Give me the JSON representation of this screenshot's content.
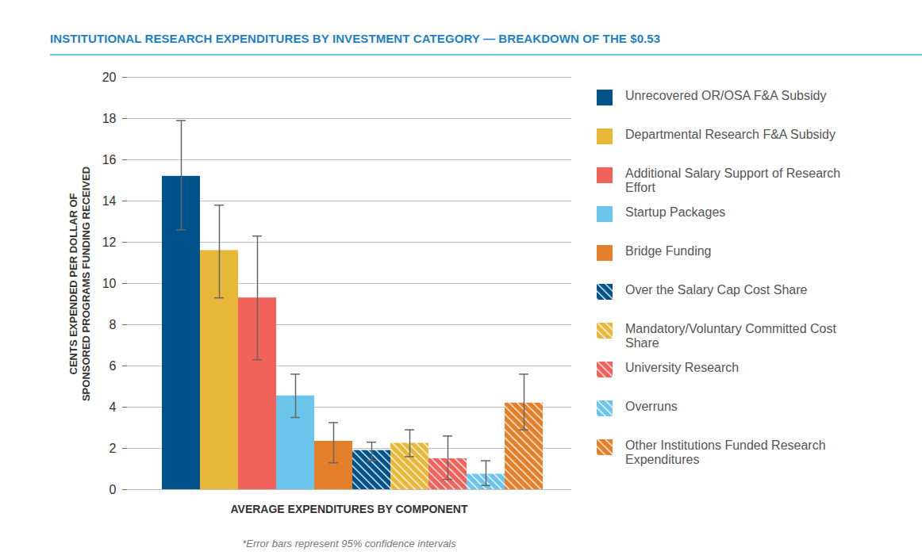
{
  "chart_data": {
    "type": "bar",
    "title": "INSTITUTIONAL RESEARCH EXPENDITURES BY INVESTMENT CATEGORY — BREAKDOWN OF THE $0.53",
    "xlabel": "AVERAGE EXPENDITURES BY COMPONENT",
    "ylabel": "CENTS EXPENDED PER DOLLAR OF SPONSORED PROGRAMS FUNDING RECEIVED",
    "caption": "*Error bars represent 95% confidence intervals",
    "categories": [
      null
    ],
    "series": [
      {
        "name": "Unrecovered OR/OSA F&A Subsidy",
        "color": "#00528a",
        "line_style": "solid",
        "values": [
          15.2
        ],
        "ci_low": [
          12.6
        ],
        "ci_high": [
          17.9
        ]
      },
      {
        "name": "Departmental Research F&A Subsidy",
        "color": "#e8b83a",
        "line_style": "solid",
        "values": [
          11.6
        ],
        "ci_low": [
          9.3
        ],
        "ci_high": [
          13.8
        ]
      },
      {
        "name": "Additional Salary Support of Research Effort",
        "color": "#f0625a",
        "line_style": "solid",
        "values": [
          9.3
        ],
        "ci_low": [
          6.3
        ],
        "ci_high": [
          12.3
        ]
      },
      {
        "name": "Startup Packages",
        "color": "#6cc5ec",
        "line_style": "solid",
        "values": [
          4.55
        ],
        "ci_low": [
          3.5
        ],
        "ci_high": [
          5.6
        ]
      },
      {
        "name": "Bridge Funding",
        "color": "#e5802a",
        "line_style": "solid",
        "values": [
          2.35
        ],
        "ci_low": [
          1.3
        ],
        "ci_high": [
          3.25
        ]
      },
      {
        "name": "Over the Salary Cap Cost Share",
        "color": "#00528a",
        "line_style": "hatched",
        "values": [
          1.9
        ],
        "ci_low": [
          1.4
        ],
        "ci_high": [
          2.3
        ]
      },
      {
        "name": "Mandatory/Voluntary Committed Cost Share",
        "color": "#e8b83a",
        "line_style": "hatched",
        "values": [
          2.25
        ],
        "ci_low": [
          1.6
        ],
        "ci_high": [
          2.9
        ]
      },
      {
        "name": "University Research",
        "color": "#f0625a",
        "line_style": "hatched",
        "values": [
          1.5
        ],
        "ci_low": [
          0.5
        ],
        "ci_high": [
          2.6
        ]
      },
      {
        "name": "Overruns",
        "color": "#6cc5ec",
        "line_style": "hatched",
        "values": [
          0.75
        ],
        "ci_low": [
          0.2
        ],
        "ci_high": [
          1.4
        ]
      },
      {
        "name": "Other Institutions Funded Research Expenditures",
        "color": "#e5802a",
        "line_style": "hatched",
        "values": [
          4.2
        ],
        "ci_low": [
          2.9
        ],
        "ci_high": [
          5.6
        ]
      }
    ],
    "ylim": [
      0,
      20
    ],
    "yticks": [
      0,
      2,
      4,
      6,
      8,
      10,
      12,
      14,
      16,
      18,
      20
    ],
    "grid": true,
    "legend": "right",
    "tick_labels": "y"
  }
}
